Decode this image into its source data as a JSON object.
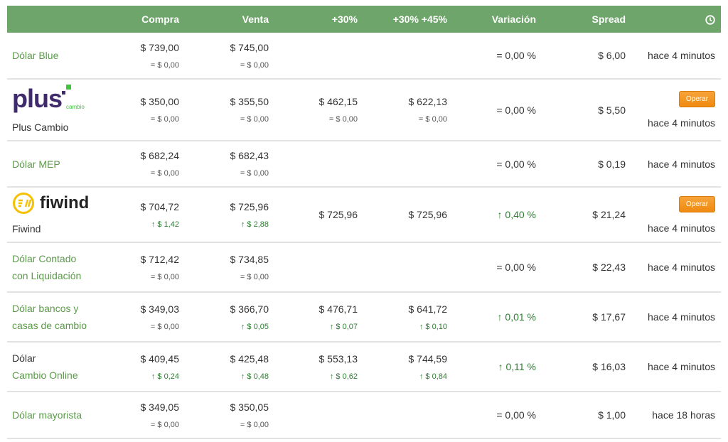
{
  "header": {
    "columns": [
      "",
      "Compra",
      "Venta",
      "+30%",
      "+30% +45%",
      "Variación",
      "Spread"
    ],
    "time_icon": "clock-icon"
  },
  "operar_label": "Operar",
  "rows": [
    {
      "name": [
        "Dólar Blue"
      ],
      "name_style": [
        "link"
      ],
      "h": 65,
      "compra": {
        "v": "$ 739,00",
        "c": "= $ 0,00",
        "up": false
      },
      "venta": {
        "v": "$ 745,00",
        "c": "= $ 0,00",
        "up": false
      },
      "p30": null,
      "p45": null,
      "var": {
        "t": "= 0,00 %",
        "up": false
      },
      "spread": "$ 6,00",
      "time": "hace 4 minutos",
      "operar": false
    },
    {
      "name": [
        "Plus Cambio"
      ],
      "name_style": [
        "dark"
      ],
      "logo": "plus",
      "logo_text": "plus",
      "logo_sub": "cambio",
      "h": 87,
      "compra": {
        "v": "$ 350,00",
        "c": "= $ 0,00",
        "up": false
      },
      "venta": {
        "v": "$ 355,50",
        "c": "= $ 0,00",
        "up": false
      },
      "p30": {
        "v": "$ 462,15",
        "c": "= $ 0,00",
        "up": false
      },
      "p45": {
        "v": "$ 622,13",
        "c": "= $ 0,00",
        "up": false
      },
      "var": {
        "t": "= 0,00 %",
        "up": false
      },
      "spread": "$ 5,50",
      "time": "hace 4 minutos",
      "operar": true
    },
    {
      "name": [
        "Dólar MEP"
      ],
      "name_style": [
        "link"
      ],
      "h": 65,
      "compra": {
        "v": "$ 682,24",
        "c": "= $ 0,00",
        "up": false
      },
      "venta": {
        "v": "$ 682,43",
        "c": "= $ 0,00",
        "up": false
      },
      "p30": null,
      "p45": null,
      "var": {
        "t": "= 0,00 %",
        "up": false
      },
      "spread": "$ 0,19",
      "time": "hace 4 minutos",
      "operar": false
    },
    {
      "name": [
        "Fiwind"
      ],
      "name_style": [
        "dark"
      ],
      "logo": "fiwind",
      "logo_text": "fiwind",
      "h": 78,
      "compra": {
        "v": "$ 704,72",
        "c": "$ 1,42",
        "up": true
      },
      "venta": {
        "v": "$ 725,96",
        "c": "$ 2,88",
        "up": true
      },
      "p30": {
        "v": "$ 725,96",
        "c": null
      },
      "p45": {
        "v": "$ 725,96",
        "c": null
      },
      "var": {
        "t": "0,40 %",
        "up": true
      },
      "spread": "$ 21,24",
      "time": "hace 4 minutos",
      "operar": true
    },
    {
      "name": [
        "Dólar Contado",
        "con Liquidación"
      ],
      "name_style": [
        "link",
        "link"
      ],
      "h": 70,
      "compra": {
        "v": "$ 712,42",
        "c": "= $ 0,00",
        "up": false
      },
      "venta": {
        "v": "$ 734,85",
        "c": "= $ 0,00",
        "up": false
      },
      "p30": null,
      "p45": null,
      "var": {
        "t": "= 0,00 %",
        "up": false
      },
      "spread": "$ 22,43",
      "time": "hace 4 minutos",
      "operar": false
    },
    {
      "name": [
        "Dólar bancos y",
        "casas de cambio"
      ],
      "name_style": [
        "link",
        "link"
      ],
      "h": 70,
      "compra": {
        "v": "$ 349,03",
        "c": "= $ 0,00",
        "up": false
      },
      "venta": {
        "v": "$ 366,70",
        "c": "$ 0,05",
        "up": true
      },
      "p30": {
        "v": "$ 476,71",
        "c": "$ 0,07",
        "up": true
      },
      "p45": {
        "v": "$ 641,72",
        "c": "$ 0,10",
        "up": true
      },
      "var": {
        "t": "0,01 %",
        "up": true
      },
      "spread": "$ 17,67",
      "time": "hace 4 minutos",
      "operar": false
    },
    {
      "name": [
        "Dólar",
        "Cambio Online"
      ],
      "name_style": [
        "dark",
        "link"
      ],
      "h": 70,
      "compra": {
        "v": "$ 409,45",
        "c": "$ 0,24",
        "up": true
      },
      "venta": {
        "v": "$ 425,48",
        "c": "$ 0,48",
        "up": true
      },
      "p30": {
        "v": "$ 553,13",
        "c": "$ 0,62",
        "up": true
      },
      "p45": {
        "v": "$ 744,59",
        "c": "$ 0,84",
        "up": true
      },
      "var": {
        "t": "0,11 %",
        "up": true
      },
      "spread": "$ 16,03",
      "time": "hace 4 minutos",
      "operar": false
    },
    {
      "name": [
        "Dólar mayorista"
      ],
      "name_style": [
        "link"
      ],
      "h": 66,
      "compra": {
        "v": "$ 349,05",
        "c": "= $ 0,00",
        "up": false
      },
      "venta": {
        "v": "$ 350,05",
        "c": "= $ 0,00",
        "up": false
      },
      "p30": null,
      "p45": null,
      "var": {
        "t": "= 0,00 %",
        "up": false
      },
      "spread": "$ 1,00",
      "time": "hace 18 horas",
      "operar": false
    }
  ]
}
